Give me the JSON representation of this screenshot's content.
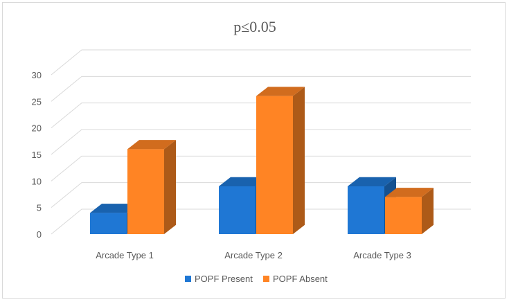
{
  "chart_data": {
    "type": "bar",
    "title": "p≤0.05",
    "categories": [
      "Arcade Type 1",
      "Arcade Type 2",
      "Arcade Type 3"
    ],
    "series": [
      {
        "name": "POPF Present",
        "values": [
          4,
          9,
          9
        ],
        "color": "#1f77d4"
      },
      {
        "name": "POPF Absent",
        "values": [
          16,
          26,
          7
        ],
        "color": "#ff8424"
      }
    ],
    "yticks": [
      0,
      5,
      10,
      15,
      20,
      25,
      30
    ],
    "ylim": [
      0,
      30
    ],
    "grid": true,
    "legend": "bottom",
    "style": "3d-clustered-column"
  }
}
